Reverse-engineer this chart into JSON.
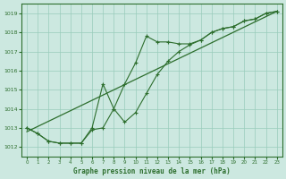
{
  "title": "Graphe pression niveau de la mer (hPa)",
  "background_color": "#cce8e0",
  "grid_color": "#99ccbb",
  "line_color": "#2d6e2d",
  "xlim": [
    -0.5,
    23.5
  ],
  "ylim": [
    1011.5,
    1019.5
  ],
  "yticks": [
    1012,
    1013,
    1014,
    1015,
    1016,
    1017,
    1018,
    1019
  ],
  "xticks": [
    0,
    1,
    2,
    3,
    4,
    5,
    6,
    7,
    8,
    9,
    10,
    11,
    12,
    13,
    14,
    15,
    16,
    17,
    18,
    19,
    20,
    21,
    22,
    23
  ],
  "line1_x": [
    0,
    1,
    2,
    3,
    4,
    5,
    6,
    7,
    8,
    9,
    10,
    11,
    12,
    13,
    14,
    15,
    16,
    17,
    18,
    19,
    20,
    21,
    22,
    23
  ],
  "line1_y": [
    1013.0,
    1012.7,
    1012.3,
    1012.2,
    1012.2,
    1012.2,
    1012.9,
    1013.0,
    1014.0,
    1015.3,
    1016.4,
    1017.8,
    1017.5,
    1017.5,
    1017.4,
    1017.4,
    1017.6,
    1018.0,
    1018.2,
    1018.3,
    1018.6,
    1018.7,
    1019.0,
    1019.1
  ],
  "line2_x": [
    0,
    1,
    2,
    3,
    4,
    5,
    6,
    7,
    8,
    9,
    10,
    11,
    12,
    13,
    14,
    15,
    16,
    17,
    18,
    19,
    20,
    21,
    22,
    23
  ],
  "line2_y": [
    1013.0,
    1012.7,
    1012.3,
    1012.2,
    1012.2,
    1012.2,
    1013.0,
    1015.3,
    1014.0,
    1013.3,
    1013.8,
    1014.8,
    1015.8,
    1016.5,
    1017.0,
    1017.35,
    1017.6,
    1018.0,
    1018.2,
    1018.3,
    1018.6,
    1018.7,
    1019.0,
    1019.1
  ],
  "line3_x": [
    0,
    23
  ],
  "line3_y": [
    1012.8,
    1019.1
  ]
}
